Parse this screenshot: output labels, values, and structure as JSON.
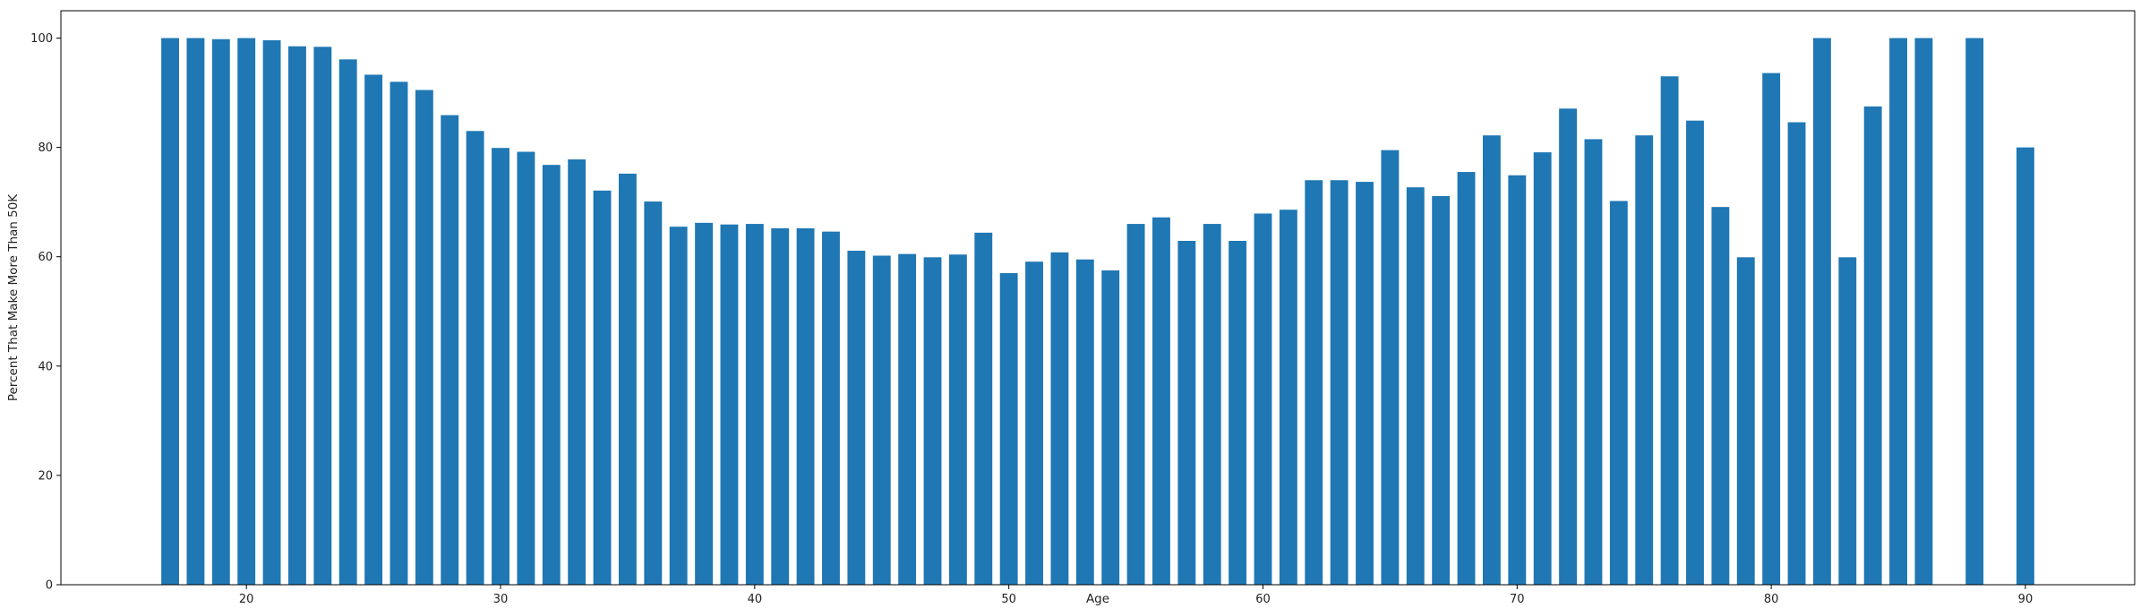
{
  "chart_data": {
    "type": "bar",
    "xlabel": "Age",
    "ylabel": "Percent That Make More Than 50K",
    "xlim": [
      12.7,
      94.3
    ],
    "ylim": [
      0,
      105
    ],
    "bar_width": 0.7,
    "bar_color": "#1f77b4",
    "grid": false,
    "legend": "none",
    "xticks": [
      20,
      30,
      40,
      50,
      60,
      70,
      80,
      90
    ],
    "yticks": [
      0,
      20,
      40,
      60,
      80,
      100
    ],
    "x": [
      17,
      18,
      19,
      20,
      21,
      22,
      23,
      24,
      25,
      26,
      27,
      28,
      29,
      30,
      31,
      32,
      33,
      34,
      35,
      36,
      37,
      38,
      39,
      40,
      41,
      42,
      43,
      44,
      45,
      46,
      47,
      48,
      49,
      50,
      51,
      52,
      53,
      54,
      55,
      56,
      57,
      58,
      59,
      60,
      61,
      62,
      63,
      64,
      65,
      66,
      67,
      68,
      69,
      70,
      71,
      72,
      73,
      74,
      75,
      76,
      77,
      78,
      79,
      80,
      81,
      82,
      83,
      84,
      85,
      86,
      88,
      90
    ],
    "values": [
      100,
      100,
      99.8,
      100,
      99.6,
      98.5,
      98.4,
      96.1,
      93.3,
      92,
      90.5,
      85.9,
      83,
      79.9,
      79.2,
      76.8,
      77.8,
      72.1,
      75.2,
      70.1,
      65.5,
      66.2,
      65.9,
      66,
      65.2,
      65.2,
      64.6,
      61.1,
      60.2,
      60.5,
      59.9,
      60.4,
      64.4,
      57,
      59.1,
      60.8,
      59.5,
      57.5,
      66,
      67.2,
      62.9,
      66,
      62.9,
      67.9,
      68.6,
      74,
      74,
      73.7,
      79.5,
      72.7,
      71.1,
      75.5,
      82.2,
      74.9,
      79.1,
      87.1,
      81.5,
      70.2,
      82.2,
      93,
      84.9,
      69.1,
      59.9,
      93.6,
      84.6,
      100,
      59.9,
      87.5,
      100,
      100,
      100,
      80
    ]
  }
}
